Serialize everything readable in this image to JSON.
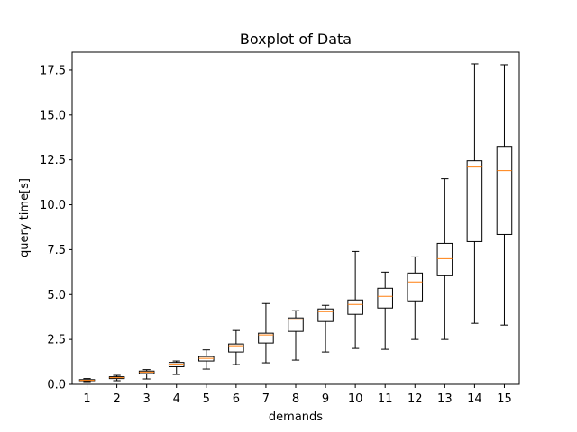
{
  "chart_data": {
    "type": "box",
    "title": "Boxplot of Data",
    "xlabel": "demands",
    "ylabel": "query time[s]",
    "ylim": [
      0,
      18.5
    ],
    "yticks": [
      "0.0",
      "2.5",
      "5.0",
      "7.5",
      "10.0",
      "12.5",
      "15.0",
      "17.5"
    ],
    "ytick_values": [
      0,
      2.5,
      5.0,
      7.5,
      10.0,
      12.5,
      15.0,
      17.5
    ],
    "grid": false,
    "categories": [
      "1",
      "2",
      "3",
      "4",
      "5",
      "6",
      "7",
      "8",
      "9",
      "10",
      "11",
      "12",
      "13",
      "14",
      "15"
    ],
    "boxes": [
      {
        "whisker_low": 0.15,
        "q1": 0.2,
        "median": 0.22,
        "q3": 0.26,
        "whisker_high": 0.32
      },
      {
        "whisker_low": 0.2,
        "q1": 0.32,
        "median": 0.37,
        "q3": 0.42,
        "whisker_high": 0.5
      },
      {
        "whisker_low": 0.3,
        "q1": 0.6,
        "median": 0.68,
        "q3": 0.74,
        "whisker_high": 0.82
      },
      {
        "whisker_low": 0.55,
        "q1": 0.98,
        "median": 1.12,
        "q3": 1.22,
        "whisker_high": 1.3
      },
      {
        "whisker_low": 0.85,
        "q1": 1.3,
        "median": 1.45,
        "q3": 1.55,
        "whisker_high": 1.92
      },
      {
        "whisker_low": 1.1,
        "q1": 1.8,
        "median": 2.15,
        "q3": 2.25,
        "whisker_high": 3.0
      },
      {
        "whisker_low": 1.2,
        "q1": 2.3,
        "median": 2.75,
        "q3": 2.85,
        "whisker_high": 4.5
      },
      {
        "whisker_low": 1.35,
        "q1": 2.95,
        "median": 3.6,
        "q3": 3.7,
        "whisker_high": 4.1
      },
      {
        "whisker_low": 1.8,
        "q1": 3.5,
        "median": 4.05,
        "q3": 4.2,
        "whisker_high": 4.4
      },
      {
        "whisker_low": 2.0,
        "q1": 3.9,
        "median": 4.45,
        "q3": 4.7,
        "whisker_high": 7.4
      },
      {
        "whisker_low": 1.95,
        "q1": 4.25,
        "median": 4.9,
        "q3": 5.35,
        "whisker_high": 6.25
      },
      {
        "whisker_low": 2.5,
        "q1": 4.65,
        "median": 5.7,
        "q3": 6.2,
        "whisker_high": 7.1
      },
      {
        "whisker_low": 2.5,
        "q1": 6.05,
        "median": 7.0,
        "q3": 7.85,
        "whisker_high": 11.45
      },
      {
        "whisker_low": 3.4,
        "q1": 7.95,
        "median": 12.1,
        "q3": 12.45,
        "whisker_high": 17.85
      },
      {
        "whisker_low": 3.3,
        "q1": 8.35,
        "median": 11.9,
        "q3": 13.25,
        "whisker_high": 17.8
      }
    ],
    "colors": {
      "box": "#000000",
      "median": "#ff7f0e"
    }
  }
}
